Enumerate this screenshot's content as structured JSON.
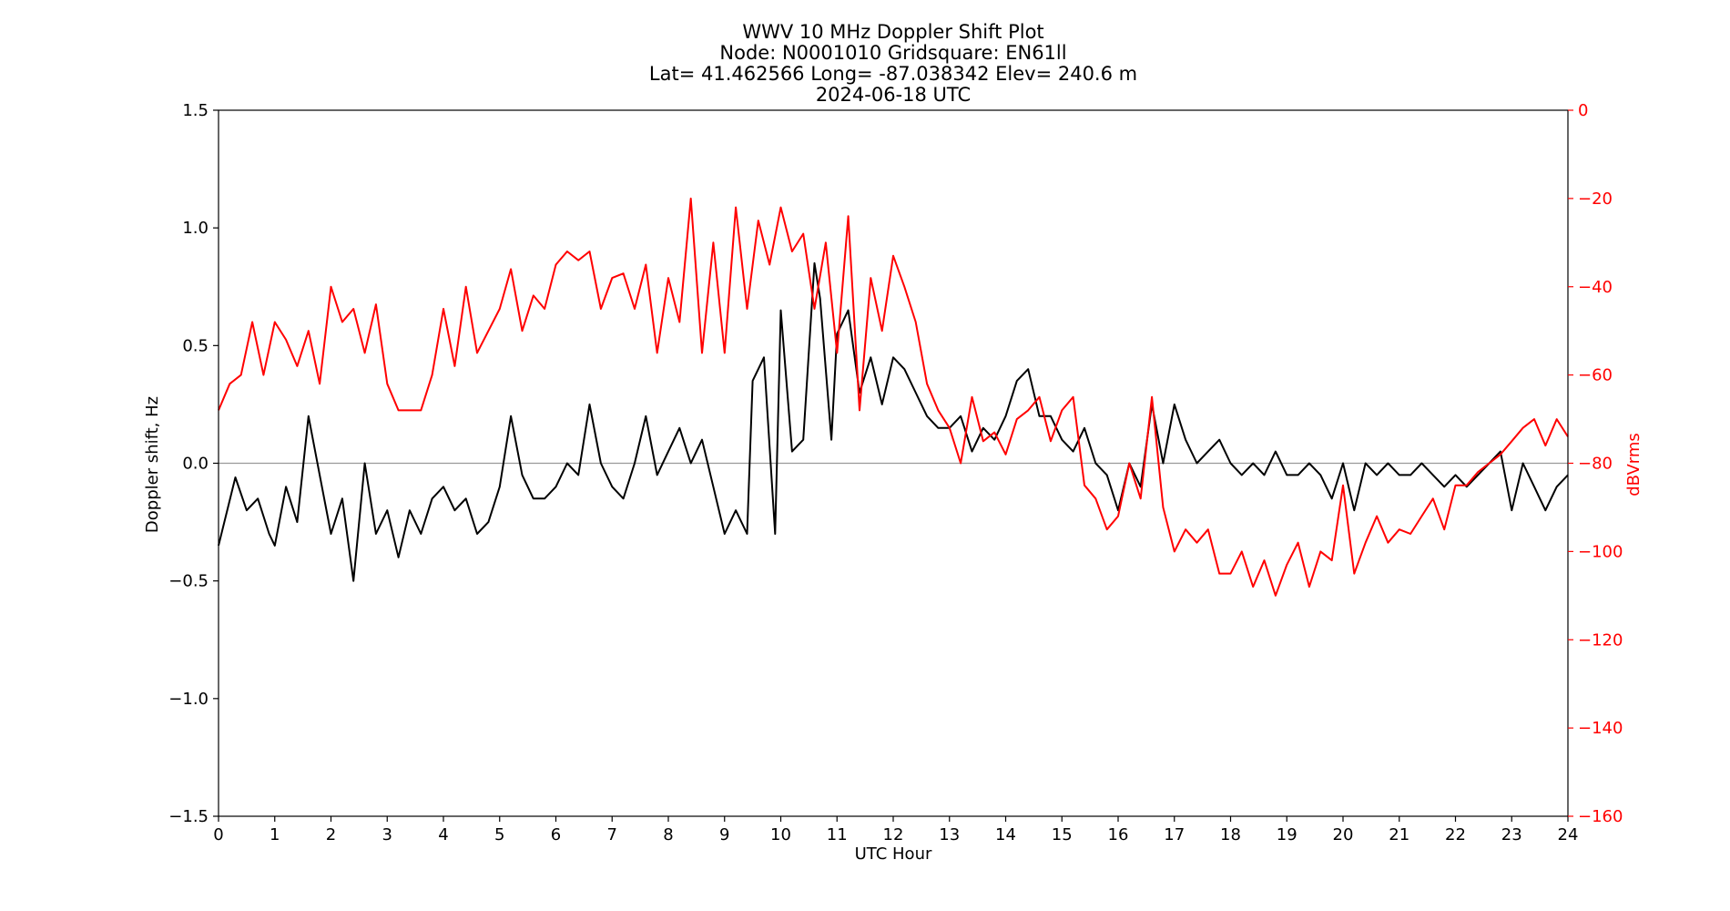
{
  "chart_data": {
    "type": "line",
    "title_lines": [
      "WWV 10 MHz Doppler Shift Plot",
      "Node:  N0001010     Gridsquare:  EN61ll",
      "Lat= 41.462566    Long= -87.038342    Elev= 240.6 m",
      "2024-06-18  UTC"
    ],
    "xlabel": "UTC Hour",
    "ylabel_left": "Doppler shift, Hz",
    "ylabel_right": "dBVrms",
    "xlim": [
      0,
      24
    ],
    "ylim_left": [
      -1.5,
      1.5
    ],
    "ylim_right": [
      -160,
      0
    ],
    "xticks": [
      0,
      1,
      2,
      3,
      4,
      5,
      6,
      7,
      8,
      9,
      10,
      11,
      12,
      13,
      14,
      15,
      16,
      17,
      18,
      19,
      20,
      21,
      22,
      23,
      24
    ],
    "yticks_left": [
      "−1.5",
      "−1.0",
      "−0.5",
      "0.0",
      "0.5",
      "1.0",
      "1.5"
    ],
    "yticks_left_values": [
      -1.5,
      -1.0,
      -0.5,
      0.0,
      0.5,
      1.0,
      1.5
    ],
    "yticks_right": [
      "−160",
      "−140",
      "−120",
      "−100",
      "−80",
      "−60",
      "−40",
      "−20",
      "0"
    ],
    "yticks_right_values": [
      -160,
      -140,
      -120,
      -100,
      -80,
      -60,
      -40,
      -20,
      0
    ],
    "grid": false,
    "zero_line": true,
    "series": [
      {
        "axis": "left",
        "color": "#000000",
        "x": [
          0,
          0.3,
          0.5,
          0.7,
          0.9,
          1.0,
          1.2,
          1.4,
          1.6,
          1.8,
          2.0,
          2.2,
          2.4,
          2.6,
          2.8,
          3.0,
          3.2,
          3.4,
          3.6,
          3.8,
          4.0,
          4.2,
          4.4,
          4.6,
          4.8,
          5.0,
          5.2,
          5.4,
          5.6,
          5.8,
          6.0,
          6.2,
          6.4,
          6.6,
          6.8,
          7.0,
          7.2,
          7.4,
          7.6,
          7.8,
          8.0,
          8.2,
          8.4,
          8.6,
          8.8,
          9.0,
          9.2,
          9.4,
          9.5,
          9.7,
          9.9,
          10.0,
          10.2,
          10.4,
          10.6,
          10.7,
          10.9,
          11.0,
          11.2,
          11.4,
          11.6,
          11.8,
          12.0,
          12.2,
          12.4,
          12.6,
          12.8,
          13.0,
          13.2,
          13.4,
          13.6,
          13.8,
          14.0,
          14.2,
          14.4,
          14.6,
          14.8,
          15.0,
          15.2,
          15.4,
          15.6,
          15.8,
          16.0,
          16.2,
          16.4,
          16.6,
          16.8,
          17.0,
          17.2,
          17.4,
          17.6,
          17.8,
          18.0,
          18.2,
          18.4,
          18.6,
          18.8,
          19.0,
          19.2,
          19.4,
          19.6,
          19.8,
          20.0,
          20.2,
          20.4,
          20.6,
          20.8,
          21.0,
          21.2,
          21.4,
          21.6,
          21.8,
          22.0,
          22.2,
          22.4,
          22.6,
          22.8,
          23.0,
          23.2,
          23.4,
          23.6,
          23.8,
          24.0
        ],
        "values": [
          -0.35,
          -0.06,
          -0.2,
          -0.15,
          -0.3,
          -0.35,
          -0.1,
          -0.25,
          0.2,
          -0.05,
          -0.3,
          -0.15,
          -0.5,
          0.0,
          -0.3,
          -0.2,
          -0.4,
          -0.2,
          -0.3,
          -0.15,
          -0.1,
          -0.2,
          -0.15,
          -0.3,
          -0.25,
          -0.1,
          0.2,
          -0.05,
          -0.15,
          -0.15,
          -0.1,
          0.0,
          -0.05,
          0.25,
          0.0,
          -0.1,
          -0.15,
          0.0,
          0.2,
          -0.05,
          0.05,
          0.15,
          0.0,
          0.1,
          -0.1,
          -0.3,
          -0.2,
          -0.3,
          0.35,
          0.45,
          -0.3,
          0.65,
          0.05,
          0.1,
          0.85,
          0.7,
          0.1,
          0.55,
          0.65,
          0.3,
          0.45,
          0.25,
          0.45,
          0.4,
          0.3,
          0.2,
          0.15,
          0.15,
          0.2,
          0.05,
          0.15,
          0.1,
          0.2,
          0.35,
          0.4,
          0.2,
          0.2,
          0.1,
          0.05,
          0.15,
          0.0,
          -0.05,
          -0.2,
          0.0,
          -0.1,
          0.25,
          0.0,
          0.25,
          0.1,
          0.0,
          0.05,
          0.1,
          0.0,
          -0.05,
          0.0,
          -0.05,
          0.05,
          -0.05,
          -0.05,
          0.0,
          -0.05,
          -0.15,
          0.0,
          -0.2,
          0.0,
          -0.05,
          0.0,
          -0.05,
          -0.05,
          0.0,
          -0.05,
          -0.1,
          -0.05,
          -0.1,
          -0.05,
          0.0,
          0.05,
          -0.2,
          0.0,
          -0.1,
          -0.2,
          -0.1,
          -0.05
        ]
      },
      {
        "axis": "right",
        "color": "#ff0000",
        "x": [
          0,
          0.2,
          0.4,
          0.6,
          0.8,
          1.0,
          1.2,
          1.4,
          1.6,
          1.8,
          2.0,
          2.2,
          2.4,
          2.6,
          2.8,
          3.0,
          3.2,
          3.4,
          3.6,
          3.8,
          4.0,
          4.2,
          4.4,
          4.6,
          4.8,
          5.0,
          5.2,
          5.4,
          5.6,
          5.8,
          6.0,
          6.2,
          6.4,
          6.6,
          6.8,
          7.0,
          7.2,
          7.4,
          7.6,
          7.8,
          8.0,
          8.2,
          8.4,
          8.6,
          8.8,
          9.0,
          9.2,
          9.4,
          9.6,
          9.8,
          10.0,
          10.2,
          10.4,
          10.6,
          10.8,
          11.0,
          11.2,
          11.4,
          11.6,
          11.8,
          12.0,
          12.2,
          12.4,
          12.6,
          12.8,
          13.0,
          13.2,
          13.4,
          13.6,
          13.8,
          14.0,
          14.2,
          14.4,
          14.6,
          14.8,
          15.0,
          15.2,
          15.4,
          15.6,
          15.8,
          16.0,
          16.2,
          16.4,
          16.6,
          16.8,
          17.0,
          17.2,
          17.4,
          17.6,
          17.8,
          18.0,
          18.2,
          18.4,
          18.6,
          18.8,
          19.0,
          19.2,
          19.4,
          19.6,
          19.8,
          20.0,
          20.2,
          20.4,
          20.6,
          20.8,
          21.0,
          21.2,
          21.4,
          21.6,
          21.8,
          22.0,
          22.2,
          22.4,
          22.6,
          22.8,
          23.0,
          23.2,
          23.4,
          23.6,
          23.8,
          24.0
        ],
        "values": [
          -68,
          -62,
          -60,
          -48,
          -60,
          -48,
          -52,
          -58,
          -50,
          -62,
          -40,
          -48,
          -45,
          -55,
          -44,
          -62,
          -68,
          -68,
          -68,
          -60,
          -45,
          -58,
          -40,
          -55,
          -50,
          -45,
          -36,
          -50,
          -42,
          -45,
          -35,
          -32,
          -34,
          -32,
          -45,
          -38,
          -37,
          -45,
          -35,
          -55,
          -38,
          -48,
          -20,
          -55,
          -30,
          -55,
          -22,
          -45,
          -25,
          -35,
          -22,
          -32,
          -28,
          -45,
          -30,
          -55,
          -24,
          -68,
          -38,
          -50,
          -33,
          -40,
          -48,
          -62,
          -68,
          -72,
          -80,
          -65,
          -75,
          -73,
          -78,
          -70,
          -68,
          -65,
          -75,
          -68,
          -65,
          -85,
          -88,
          -95,
          -92,
          -80,
          -88,
          -65,
          -90,
          -100,
          -95,
          -98,
          -95,
          -105,
          -105,
          -100,
          -108,
          -102,
          -110,
          -103,
          -98,
          -108,
          -100,
          -102,
          -85,
          -105,
          -98,
          -92,
          -98,
          -95,
          -96,
          -92,
          -88,
          -95,
          -85,
          -85,
          -82,
          -80,
          -78,
          -75,
          -72,
          -70,
          -76,
          -70,
          -74
        ]
      }
    ]
  }
}
